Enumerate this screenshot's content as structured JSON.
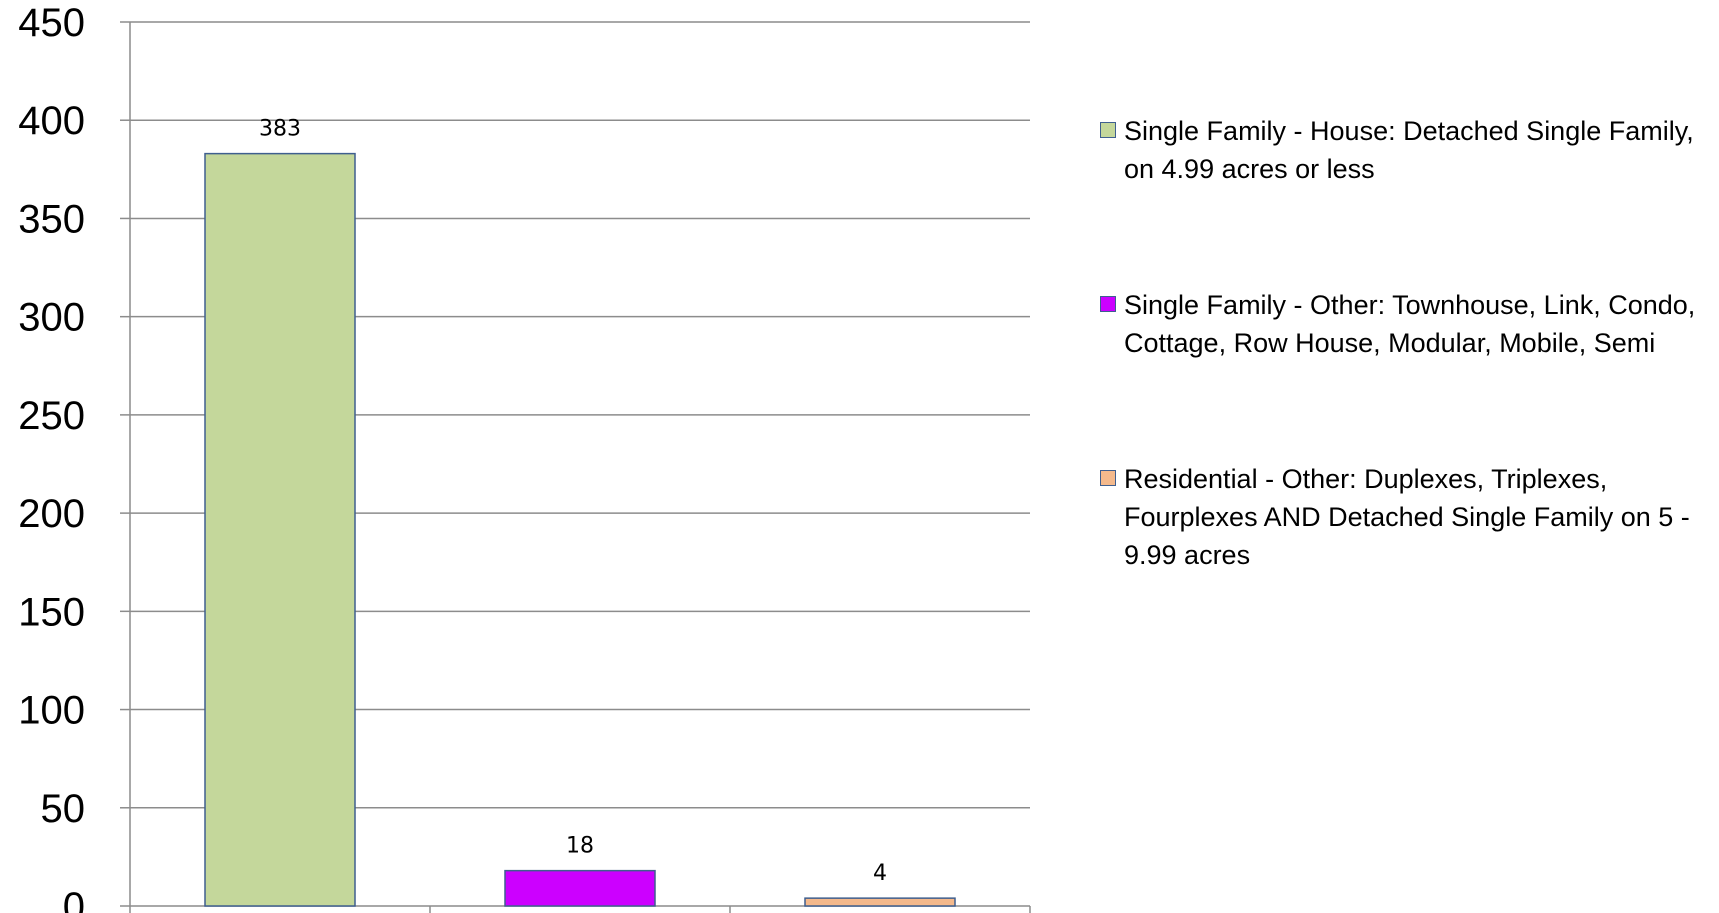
{
  "chart_data": {
    "type": "bar",
    "categories": [
      "Single Family - House: Detached Single Family, on 4.99 acres or less",
      "Single Family - Other: Townhouse, Link, Condo, Cottage, Row House, Modular, Mobile, Semi",
      "Residential - Other: Duplexes, Triplexes, Fourplexes AND Detached Single Family on 5 - 9.99 acres"
    ],
    "values": [
      383,
      18,
      4
    ],
    "data_labels": [
      "383",
      "18",
      "4"
    ],
    "colors": [
      "#c4d79b",
      "#cc00ff",
      "#f4b98c"
    ],
    "ylim": [
      0,
      450
    ],
    "yticks": [
      0,
      50,
      100,
      150,
      200,
      250,
      300,
      350,
      400,
      450
    ],
    "ytick_labels": [
      "0",
      "50",
      "100",
      "150",
      "200",
      "250",
      "300",
      "350",
      "400",
      "450"
    ],
    "grid": true,
    "legend_position": "right",
    "title": "",
    "xlabel": "",
    "ylabel": ""
  },
  "legend": [
    {
      "label": "Single Family - House: Detached Single Family, on 4.99 acres or less",
      "color": "#c4d79b"
    },
    {
      "label": "Single Family - Other: Townhouse, Link, Condo, Cottage, Row House, Modular, Mobile, Semi",
      "color": "#cc00ff"
    },
    {
      "label": "Residential - Other: Duplexes, Triplexes, Fourplexes AND Detached Single Family on 5 - 9.99 acres",
      "color": "#f4b98c"
    }
  ]
}
